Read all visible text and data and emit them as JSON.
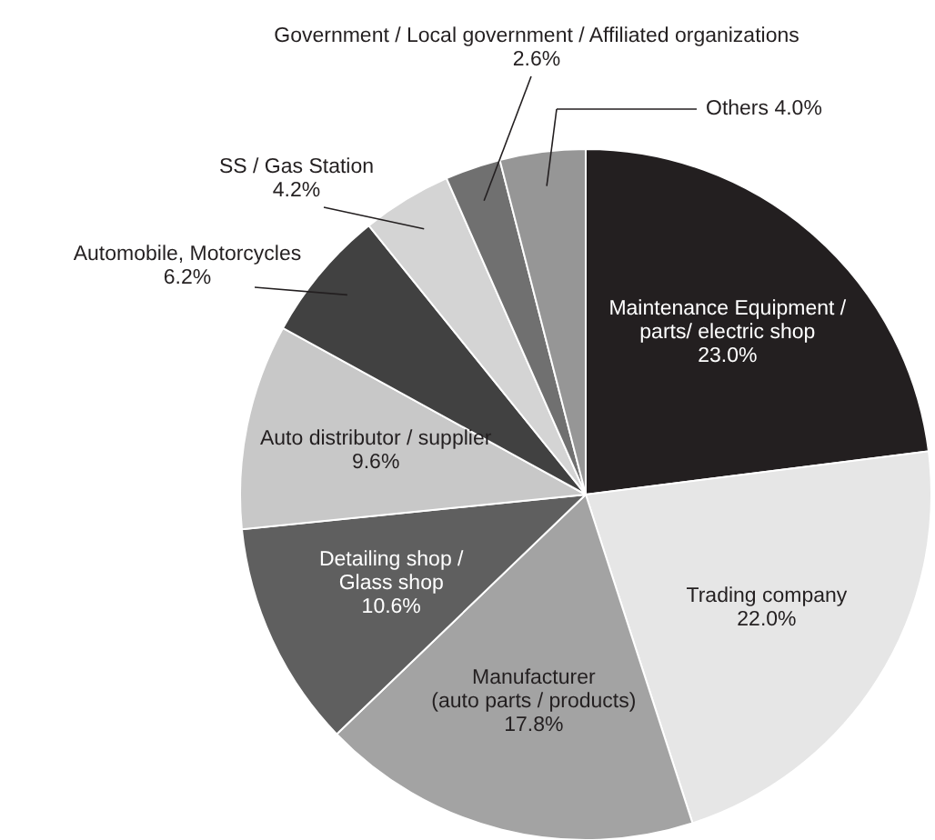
{
  "chart_data": {
    "type": "pie",
    "categories": [
      "Maintenance Equipment /\nparts/ electric shop",
      "Trading company",
      "Manufacturer\n(auto parts / products)",
      "Detailing shop /\nGlass shop",
      "Auto distributor / supplier",
      "Automobile, Motorcycles",
      "SS / Gas Station",
      "Government / Local government / Affiliated organizations",
      "Others"
    ],
    "values": [
      23.0,
      22.0,
      17.8,
      10.6,
      9.6,
      6.2,
      4.2,
      2.6,
      4.0
    ],
    "colors": [
      "#231f20",
      "#e6e6e6",
      "#a3a3a3",
      "#5f5f5f",
      "#c8c8c8",
      "#414141",
      "#d4d4d4",
      "#707070",
      "#969696"
    ],
    "value_labels": [
      "23.0%",
      "22.0%",
      "17.8%",
      "10.6%",
      "9.6%",
      "6.2%",
      "4.2%",
      "2.6%",
      "4.0%"
    ]
  }
}
